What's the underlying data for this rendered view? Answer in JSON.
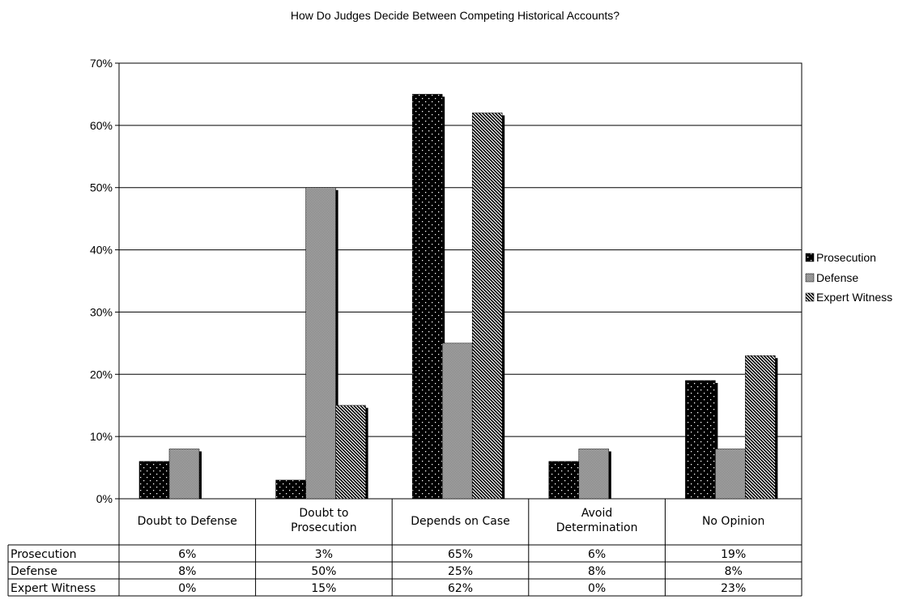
{
  "chart_data": {
    "type": "bar",
    "title": "How Do Judges Decide Between Competing Historical Accounts?",
    "xlabel": "",
    "ylabel": "",
    "ylim": [
      0,
      70
    ],
    "yticks": [
      "0%",
      "10%",
      "20%",
      "30%",
      "40%",
      "50%",
      "60%",
      "70%"
    ],
    "grid": true,
    "legend_position": "right",
    "categories": [
      "Doubt to Defense",
      "Doubt to Prosecution",
      "Depends on Case",
      "Avoid Determination",
      "No Opinion"
    ],
    "series": [
      {
        "name": "Prosecution",
        "values": [
          6,
          3,
          65,
          6,
          19
        ],
        "labels": [
          "6%",
          "3%",
          "65%",
          "6%",
          "19%"
        ],
        "pattern": "dots-on-black"
      },
      {
        "name": "Defense",
        "values": [
          8,
          50,
          25,
          8,
          8
        ],
        "labels": [
          "8%",
          "50%",
          "25%",
          "8%",
          "8%"
        ],
        "pattern": "checker-gray"
      },
      {
        "name": "Expert Witness",
        "values": [
          0,
          15,
          62,
          0,
          23
        ],
        "labels": [
          "0%",
          "15%",
          "62%",
          "0%",
          "23%"
        ],
        "pattern": "diagonal-stripes"
      }
    ],
    "data_table": true
  }
}
